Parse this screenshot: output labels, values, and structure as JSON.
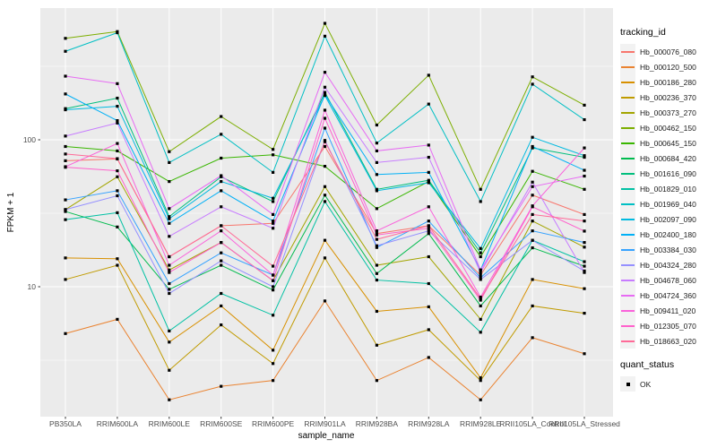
{
  "chart_data": {
    "type": "line",
    "title": "",
    "xlabel": "sample_name",
    "ylabel": "FPKM + 1",
    "y_scale": "log10",
    "y_ticks": [
      100,
      10
    ],
    "y_minor_gridlines": [
      316.2,
      31.62,
      3.162
    ],
    "ylim": [
      1.3,
      780
    ],
    "grid": "on",
    "legend_position": "right",
    "legend_title": "tracking_id",
    "panel_bg": "#EBEBEB",
    "grid_color": "#FFFFFF",
    "point_color": "#000000",
    "tick_label_color": "#4D4D4D",
    "point_shape": "filled-square",
    "categories": [
      "PB350LA",
      "RRIM600LA",
      "RRIM600LE",
      "RRIM600SE",
      "RRIM600PE",
      "RRIM901LA",
      "RRIM928BA",
      "RRIM928LA",
      "RRIM928LE",
      "RRII105LA_Control",
      "RRII105LA_Stressed"
    ],
    "series": [
      {
        "name": "Hb_000076_080",
        "color": "#F8766D",
        "values": [
          72,
          74,
          16,
          26,
          27,
          90,
          23,
          26,
          12,
          42,
          31
        ]
      },
      {
        "name": "Hb_000120_500",
        "color": "#EA8331",
        "values": [
          4.8,
          6,
          1.7,
          2.1,
          2.3,
          8,
          2.3,
          3.3,
          1.7,
          4.5,
          3.5
        ]
      },
      {
        "name": "Hb_000186_280",
        "color": "#D89000",
        "values": [
          15.7,
          15.5,
          4.2,
          7.4,
          3.7,
          20.7,
          6.8,
          7.3,
          2.4,
          11.2,
          9.7
        ]
      },
      {
        "name": "Hb_000236_370",
        "color": "#C09B00",
        "values": [
          11.2,
          14,
          2.7,
          5.5,
          3,
          15.7,
          4,
          5.1,
          2.3,
          7.4,
          6.6
        ]
      },
      {
        "name": "Hb_000373_270",
        "color": "#A3A500",
        "values": [
          33.5,
          56,
          13,
          20,
          11,
          48,
          14,
          16,
          6,
          28,
          18.6
        ]
      },
      {
        "name": "Hb_000462_150",
        "color": "#7CAE00",
        "values": [
          490,
          545,
          83,
          144,
          86,
          620,
          126,
          275,
          46,
          268,
          172
        ]
      },
      {
        "name": "Hb_000645_150",
        "color": "#39B600",
        "values": [
          90,
          84,
          52,
          75,
          79,
          66,
          34,
          52,
          16,
          61,
          46
        ]
      },
      {
        "name": "Hb_000684_420",
        "color": "#00BB4E",
        "values": [
          32.5,
          25.5,
          9.6,
          14,
          9.5,
          42,
          12.3,
          23,
          7.4,
          18.4,
          13.8
        ]
      },
      {
        "name": "Hb_001616_090",
        "color": "#00BF7D",
        "values": [
          163,
          192,
          30,
          56,
          38,
          210,
          46,
          53,
          17,
          88,
          76
        ]
      },
      {
        "name": "Hb_001829_010",
        "color": "#00C1A3",
        "values": [
          28.6,
          31.9,
          5,
          9,
          6.4,
          38,
          11.1,
          10.5,
          4.9,
          20.7,
          14.8
        ]
      },
      {
        "name": "Hb_001969_040",
        "color": "#00BFC4",
        "values": [
          400,
          535,
          70,
          109,
          60,
          507,
          95,
          175,
          38,
          239,
          137
        ]
      },
      {
        "name": "Hb_002097_090",
        "color": "#00BAE0",
        "values": [
          160,
          169,
          29,
          52,
          40,
          200,
          45,
          51,
          18.2,
          104,
          78
        ]
      },
      {
        "name": "Hb_002400_180",
        "color": "#00B0F6",
        "values": [
          205,
          135,
          27,
          45,
          28,
          203,
          58,
          60,
          13,
          90,
          62
        ]
      },
      {
        "name": "Hb_003384_030",
        "color": "#35A2FF",
        "values": [
          39,
          45,
          10.5,
          17,
          12,
          120,
          18.5,
          28,
          11.5,
          24,
          20
        ]
      },
      {
        "name": "Hb_004324_280",
        "color": "#9590FF",
        "values": [
          33.5,
          41.6,
          9,
          15,
          10,
          99,
          19,
          24,
          11.2,
          20.7,
          12.8
        ]
      },
      {
        "name": "Hb_004678_060",
        "color": "#C77CFF",
        "values": [
          106,
          130,
          22,
          35,
          25,
          228,
          70,
          76,
          12.5,
          51.5,
          12.5
        ]
      },
      {
        "name": "Hb_004724_360",
        "color": "#E76BF3",
        "values": [
          271,
          241,
          34,
          57,
          31,
          288,
          84,
          92,
          13,
          48,
          56.6
        ]
      },
      {
        "name": "Hb_009411_020",
        "color": "#FA62DB",
        "values": [
          65.6,
          94.4,
          14,
          24,
          12,
          159,
          24,
          35,
          8.5,
          35.5,
          88
        ]
      },
      {
        "name": "Hb_012305_070",
        "color": "#FF61CC",
        "values": [
          65,
          61.5,
          12.5,
          20,
          11,
          140,
          22.5,
          25,
          8.1,
          35,
          23.9
        ]
      },
      {
        "name": "Hb_018663_020",
        "color": "#FF6A98",
        "values": [
          80,
          74.4,
          16,
          26,
          13.8,
          97,
          21,
          26,
          8.3,
          31,
          28
        ]
      }
    ],
    "quant_legend": {
      "title": "quant_status",
      "items": [
        {
          "label": "OK",
          "marker": "black-square"
        }
      ]
    }
  }
}
